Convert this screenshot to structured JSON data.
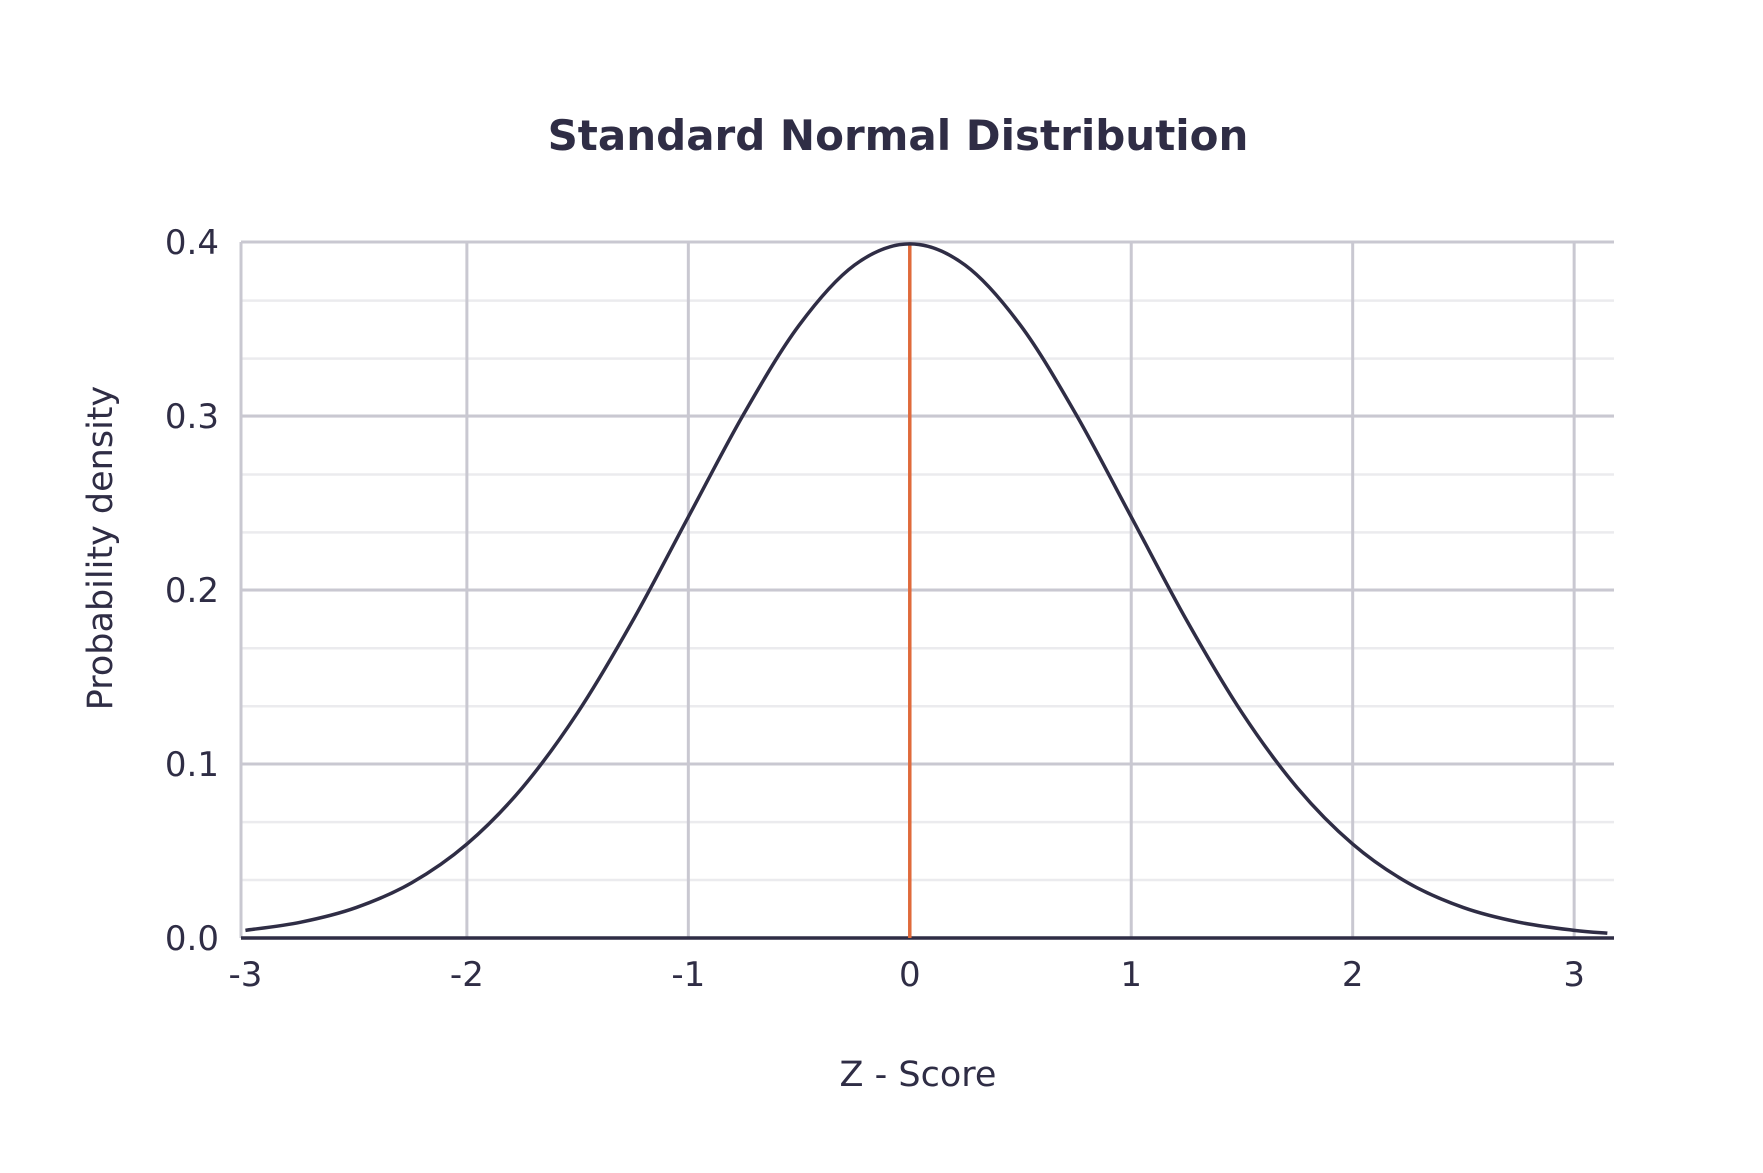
{
  "chart_data": {
    "type": "line",
    "title": "Standard Normal Distribution",
    "xlabel": "Z - Score",
    "ylabel": "Probability density",
    "xlim": [
      -3.02,
      3.18
    ],
    "ylim": [
      0,
      0.4
    ],
    "x_ticks": [
      -3,
      -2,
      -1,
      0,
      1,
      2,
      3
    ],
    "x_tick_labels": [
      "-3",
      "-2",
      "-1",
      "0",
      "1",
      "2",
      "3"
    ],
    "y_ticks": [
      0,
      0.1,
      0.2,
      0.3,
      0.4
    ],
    "y_tick_labels": [
      "0.0",
      "0.1",
      "0.2",
      "0.3",
      "0.4"
    ],
    "y_minor_step": 0.0333,
    "grid": true,
    "series": [
      {
        "color": "#2f2d45",
        "x": [
          -3.0,
          -2.75,
          -2.5,
          -2.25,
          -2.0,
          -1.75,
          -1.5,
          -1.25,
          -1.0,
          -0.75,
          -0.5,
          -0.25,
          0.0,
          0.25,
          0.5,
          0.75,
          1.0,
          1.25,
          1.5,
          1.75,
          2.0,
          2.25,
          2.5,
          2.75,
          3.0,
          3.15
        ],
        "y": [
          0.0044,
          0.0091,
          0.0175,
          0.0317,
          0.054,
          0.0863,
          0.1295,
          0.1826,
          0.242,
          0.3011,
          0.3521,
          0.3867,
          0.3989,
          0.3867,
          0.3521,
          0.3011,
          0.242,
          0.1826,
          0.1295,
          0.0863,
          0.054,
          0.0317,
          0.0175,
          0.0091,
          0.0044,
          0.0028
        ]
      }
    ],
    "reference_line": {
      "x": 0,
      "color": "#e06a3b"
    },
    "colors": {
      "major_grid": "#c9c8d1",
      "minor_grid": "#ebebee",
      "axis": "#2f2d45"
    }
  }
}
